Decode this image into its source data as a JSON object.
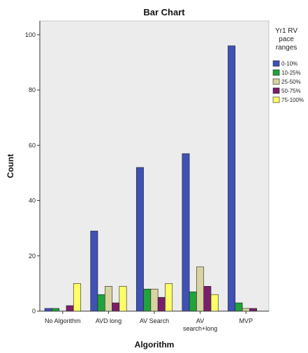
{
  "chart_data": {
    "type": "bar",
    "title": "Bar Chart",
    "xlabel": "Algorithm",
    "ylabel": "Count",
    "ylim": [
      0,
      105
    ],
    "yticks": [
      0,
      20,
      40,
      60,
      80,
      100
    ],
    "grid": false,
    "legend_position": "right",
    "legend_title": [
      "Yr1 RV",
      "pace",
      "ranges"
    ],
    "categories": [
      [
        "No Algorithm"
      ],
      [
        "AVD long"
      ],
      [
        "AV Search"
      ],
      [
        "AV",
        "search+long"
      ],
      [
        "MVP"
      ]
    ],
    "series": [
      {
        "name": "0-10%",
        "color": "#3f51b5",
        "values": [
          1,
          29,
          52,
          57,
          96
        ]
      },
      {
        "name": "10-25%",
        "color": "#1fa33a",
        "values": [
          1,
          6,
          8,
          7,
          3
        ]
      },
      {
        "name": "25-50%",
        "color": "#d8d3a0",
        "values": [
          0,
          9,
          8,
          16,
          1
        ]
      },
      {
        "name": "50-75%",
        "color": "#7a1f6e",
        "values": [
          2,
          3,
          5,
          9,
          1
        ]
      },
      {
        "name": "75-100%",
        "color": "#ffff66",
        "values": [
          10,
          9,
          10,
          6,
          0
        ]
      }
    ],
    "plot_background": "#ececec"
  }
}
